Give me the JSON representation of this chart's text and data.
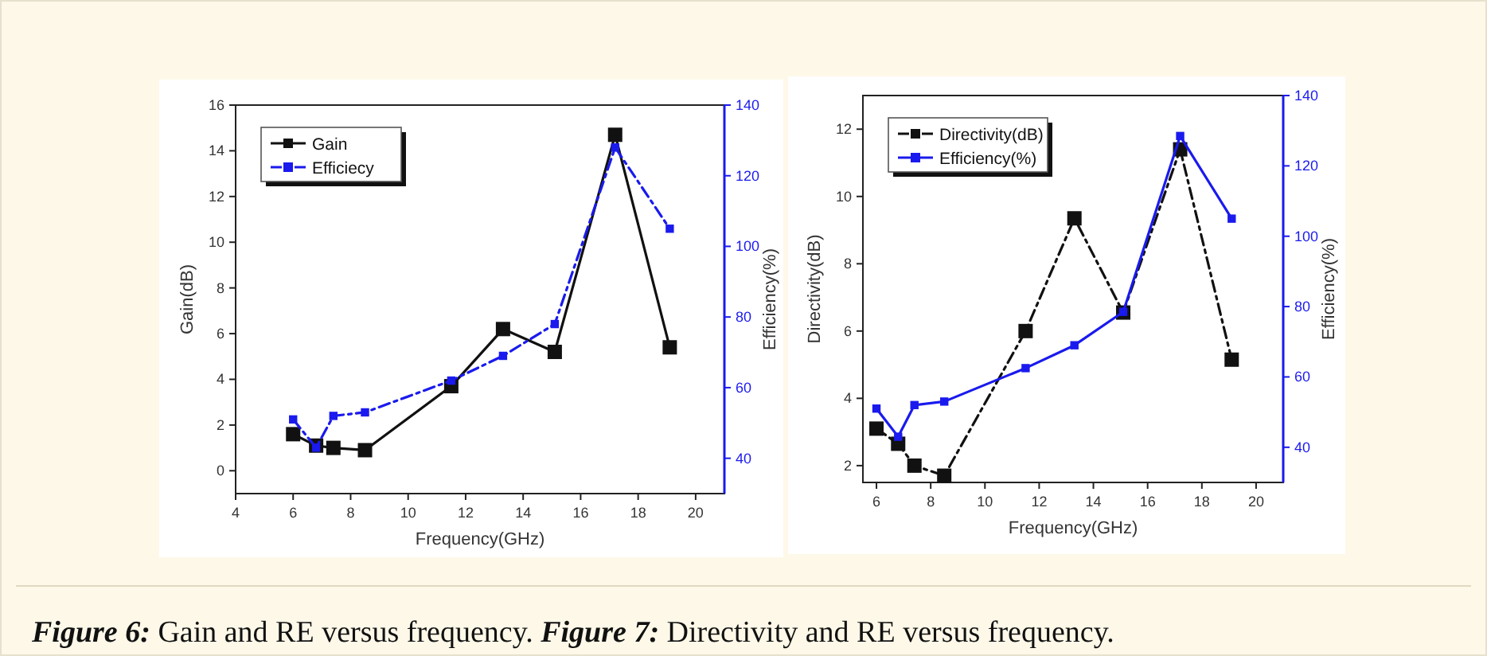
{
  "chart_data": [
    {
      "type": "line",
      "xlabel": "Frequency(GHz)",
      "ylabel": "Gain(dB)",
      "y2label": "Efficiency(%)",
      "x": [
        6,
        6.8,
        7.4,
        8.5,
        11.5,
        13.3,
        15.1,
        17.2,
        19.1
      ],
      "xlim": [
        4,
        21
      ],
      "xticks": [
        4,
        6,
        8,
        10,
        12,
        14,
        16,
        18,
        20
      ],
      "ylim": [
        -1,
        16
      ],
      "yticks": [
        0,
        2,
        4,
        6,
        8,
        10,
        12,
        14,
        16
      ],
      "y2lim": [
        30,
        140
      ],
      "y2ticks": [
        40,
        60,
        80,
        100,
        120,
        140
      ],
      "legend": "top left",
      "marker": "square",
      "series": [
        {
          "name": "Gain",
          "color": "#111111",
          "line_style": "solid",
          "values": [
            1.6,
            1.1,
            1.0,
            0.9,
            3.7,
            6.2,
            5.2,
            14.7,
            5.4
          ]
        },
        {
          "name": "Efficiecy",
          "color": "#1a1aee",
          "line_style": "dashed",
          "axis": "y2",
          "values": [
            51,
            43,
            52,
            53,
            62,
            69,
            78,
            128,
            105
          ]
        }
      ],
      "annotations": [
        "Figure 6: Gain and RE versus frequency."
      ]
    },
    {
      "type": "line",
      "xlabel": "Frequency(GHz)",
      "ylabel": "Directivity(dB)",
      "y2label": "Efficiency(%)",
      "x": [
        6,
        6.8,
        7.4,
        8.5,
        11.5,
        13.3,
        15.1,
        17.2,
        19.1
      ],
      "xlim": [
        5.5,
        21
      ],
      "xticks": [
        6,
        8,
        10,
        12,
        14,
        16,
        18,
        20
      ],
      "ylim": [
        1.5,
        13
      ],
      "yticks": [
        2,
        4,
        6,
        8,
        10,
        12
      ],
      "y2lim": [
        30,
        140
      ],
      "y2ticks": [
        40,
        60,
        80,
        100,
        120,
        140
      ],
      "legend": "top left",
      "marker": "square",
      "series": [
        {
          "name": "Directivity(dB)",
          "color": "#111111",
          "line_style": "dashed",
          "values": [
            3.1,
            2.65,
            2.0,
            1.7,
            6.0,
            9.35,
            6.55,
            11.4,
            5.15
          ]
        },
        {
          "name": "Efficiency(%)",
          "color": "#1a1aee",
          "line_style": "solid",
          "axis": "y2",
          "values": [
            51,
            43,
            52,
            53,
            62.5,
            69,
            78.5,
            128.5,
            105
          ]
        }
      ],
      "annotations": [
        "Figure 7: Directivity and RE versus frequency."
      ]
    }
  ]
}
